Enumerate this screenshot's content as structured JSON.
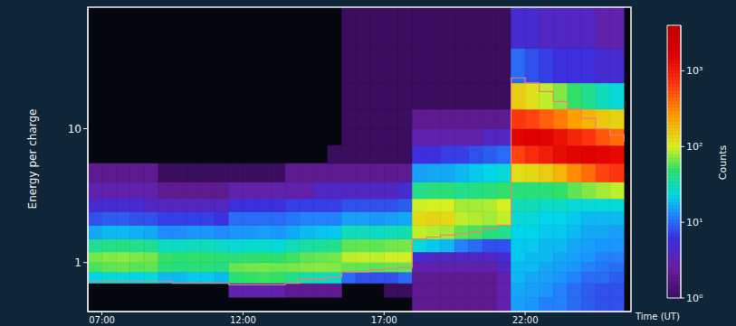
{
  "chart_data": {
    "type": "heatmap",
    "x_label": "Time (UT)",
    "y_label": "Energy per charge",
    "log": "y",
    "xlim": [
      6.5,
      25.75
    ],
    "xticks": [
      {
        "value": 7,
        "label": "07:00"
      },
      {
        "value": 12,
        "label": "12:00"
      },
      {
        "value": 17,
        "label": "17:00"
      },
      {
        "value": 22,
        "label": "22:00"
      }
    ],
    "ylim": [
      0.43,
      81
    ],
    "yticks": [
      1,
      10
    ],
    "x_edges": [
      6.5,
      7,
      7.5,
      8,
      8.5,
      9,
      9.5,
      10,
      10.5,
      11,
      11.5,
      12,
      12.5,
      13,
      13.5,
      14,
      14.5,
      15,
      15.5,
      16,
      16.5,
      17,
      17.5,
      18,
      18.5,
      19,
      19.5,
      20,
      20.5,
      21,
      21.5,
      22,
      22.5,
      23,
      23.5,
      24,
      24.5,
      25,
      25.5
    ],
    "y_edges": [
      0.43,
      0.55,
      0.7,
      0.85,
      1.0,
      1.2,
      1.5,
      1.9,
      2.4,
      3.0,
      4.0,
      5.5,
      7.5,
      10,
      14,
      22,
      40,
      81
    ],
    "cells": [
      [
        0,
        0,
        22,
        55,
        65,
        38,
        16,
        8,
        5,
        3,
        2,
        0,
        0,
        0,
        0,
        0,
        0
      ],
      [
        0,
        0,
        25,
        60,
        70,
        40,
        18,
        9,
        5,
        3,
        2,
        0,
        0,
        0,
        0,
        0,
        0
      ],
      [
        0,
        0,
        24,
        62,
        72,
        42,
        18,
        9,
        5,
        3,
        2,
        0,
        0,
        0,
        0,
        0,
        0
      ],
      [
        0,
        0,
        22,
        58,
        68,
        40,
        17,
        8,
        5,
        3,
        2,
        0,
        0,
        0,
        0,
        0,
        0
      ],
      [
        0,
        0,
        24,
        60,
        66,
        38,
        16,
        8,
        4,
        3,
        2,
        0,
        0,
        0,
        0,
        0,
        0
      ],
      [
        0,
        0,
        18,
        45,
        50,
        28,
        13,
        7,
        4,
        2,
        1,
        0,
        0,
        0,
        0,
        0,
        0
      ],
      [
        0,
        0,
        18,
        42,
        48,
        28,
        13,
        7,
        4,
        2,
        1,
        0,
        0,
        0,
        0,
        0,
        0
      ],
      [
        0,
        0,
        20,
        45,
        50,
        30,
        14,
        7,
        4,
        2,
        1,
        0,
        0,
        0,
        0,
        0,
        0
      ],
      [
        0,
        0,
        20,
        44,
        48,
        30,
        14,
        7,
        4,
        2,
        1,
        0,
        0,
        0,
        0,
        0,
        0
      ],
      [
        0,
        0,
        18,
        42,
        46,
        28,
        13,
        6,
        4,
        2,
        1,
        0,
        0,
        0,
        0,
        0,
        0
      ],
      [
        0,
        3,
        45,
        62,
        45,
        25,
        14,
        10,
        6,
        3,
        1,
        0,
        0,
        0,
        0,
        0,
        0
      ],
      [
        0,
        3,
        50,
        65,
        46,
        26,
        14,
        10,
        6,
        3,
        1,
        0,
        0,
        0,
        0,
        0,
        0
      ],
      [
        0,
        3,
        52,
        66,
        48,
        26,
        15,
        10,
        6,
        3,
        1,
        0,
        0,
        0,
        0,
        0,
        0
      ],
      [
        0,
        3,
        50,
        64,
        46,
        25,
        14,
        10,
        6,
        3,
        1,
        0,
        0,
        0,
        0,
        0,
        0
      ],
      [
        0,
        2,
        40,
        66,
        52,
        30,
        16,
        11,
        7,
        3,
        2,
        0,
        0,
        0,
        0,
        0,
        0
      ],
      [
        0,
        2,
        32,
        70,
        60,
        35,
        18,
        12,
        7,
        3,
        2,
        0,
        0,
        0,
        0,
        0,
        0
      ],
      [
        0,
        2,
        30,
        72,
        62,
        36,
        19,
        12,
        7,
        4,
        2,
        0,
        0,
        0,
        0,
        0,
        0
      ],
      [
        0,
        2,
        28,
        70,
        65,
        40,
        20,
        12,
        7,
        4,
        2,
        1,
        0,
        0,
        0,
        0,
        0
      ],
      [
        0,
        0,
        10,
        62,
        88,
        60,
        30,
        15,
        8,
        4,
        2,
        1,
        1,
        1,
        1,
        1,
        1
      ],
      [
        0,
        0,
        8,
        60,
        92,
        62,
        30,
        15,
        8,
        4,
        2,
        1,
        1,
        1,
        1,
        1,
        1
      ],
      [
        0,
        0,
        8,
        58,
        90,
        60,
        28,
        14,
        8,
        4,
        2,
        1,
        1,
        1,
        1,
        1,
        1
      ],
      [
        0,
        1,
        8,
        60,
        95,
        65,
        30,
        15,
        8,
        4,
        2,
        1,
        1,
        1,
        1,
        1,
        1
      ],
      [
        0,
        1,
        10,
        62,
        95,
        66,
        32,
        16,
        9,
        5,
        2,
        1,
        1,
        1,
        1,
        1,
        1
      ],
      [
        2,
        2,
        2,
        3,
        5,
        25,
        90,
        130,
        95,
        40,
        15,
        6,
        3,
        2,
        1,
        1,
        1
      ],
      [
        2,
        2,
        2,
        3,
        4,
        20,
        85,
        140,
        100,
        45,
        16,
        6,
        3,
        2,
        1,
        1,
        1
      ],
      [
        2,
        2,
        2,
        3,
        4,
        18,
        80,
        130,
        100,
        45,
        16,
        7,
        3,
        2,
        1,
        1,
        1
      ],
      [
        2,
        2,
        2,
        3,
        4,
        12,
        60,
        90,
        80,
        40,
        18,
        7,
        3,
        2,
        1,
        1,
        1
      ],
      [
        2,
        2,
        2,
        3,
        4,
        10,
        55,
        85,
        80,
        42,
        20,
        8,
        3,
        2,
        1,
        1,
        1
      ],
      [
        2,
        2,
        2,
        3,
        4,
        8,
        45,
        80,
        85,
        45,
        22,
        9,
        4,
        2,
        1,
        1,
        1
      ],
      [
        3,
        3,
        3,
        4,
        5,
        8,
        40,
        90,
        100,
        50,
        25,
        10,
        4,
        2,
        1,
        1,
        1
      ],
      [
        15,
        16,
        18,
        18,
        20,
        20,
        22,
        25,
        30,
        45,
        120,
        600,
        1500,
        700,
        150,
        10,
        5
      ],
      [
        14,
        15,
        16,
        18,
        18,
        20,
        22,
        25,
        30,
        45,
        130,
        800,
        1600,
        600,
        120,
        8,
        5
      ],
      [
        12,
        14,
        15,
        16,
        18,
        18,
        20,
        22,
        28,
        45,
        150,
        1000,
        1500,
        450,
        90,
        7,
        4
      ],
      [
        12,
        12,
        14,
        15,
        16,
        18,
        20,
        22,
        28,
        50,
        200,
        1300,
        1200,
        350,
        70,
        6,
        4
      ],
      [
        10,
        10,
        12,
        14,
        15,
        16,
        18,
        20,
        25,
        60,
        300,
        1500,
        900,
        250,
        50,
        6,
        4
      ],
      [
        9,
        9,
        10,
        12,
        14,
        15,
        16,
        18,
        25,
        70,
        400,
        1600,
        700,
        200,
        40,
        6,
        4
      ],
      [
        8,
        8,
        10,
        11,
        12,
        14,
        16,
        18,
        25,
        80,
        600,
        1500,
        500,
        160,
        30,
        5,
        3
      ],
      [
        8,
        8,
        9,
        10,
        12,
        14,
        15,
        18,
        25,
        90,
        700,
        1400,
        400,
        140,
        25,
        5,
        3
      ]
    ],
    "colorbar": {
      "label": "Counts",
      "log": true,
      "range": [
        1,
        4000
      ],
      "ticks": [
        {
          "value": 1,
          "label": "10⁰"
        },
        {
          "value": 10,
          "label": "10¹"
        },
        {
          "value": 100,
          "label": "10²"
        },
        {
          "value": 1000,
          "label": "10³"
        }
      ]
    },
    "trace": {
      "color": "#f08070",
      "values": [
        0.72,
        0.72,
        0.72,
        0.72,
        0.72,
        0.72,
        0.7,
        0.7,
        0.7,
        0.7,
        0.68,
        0.68,
        0.68,
        0.68,
        0.7,
        0.75,
        0.76,
        0.78,
        0.85,
        0.85,
        0.88,
        0.9,
        0.92,
        1.5,
        1.55,
        1.6,
        1.65,
        1.7,
        1.8,
        1.9,
        24,
        22,
        19,
        16,
        14,
        12,
        10,
        9,
        8
      ]
    }
  }
}
